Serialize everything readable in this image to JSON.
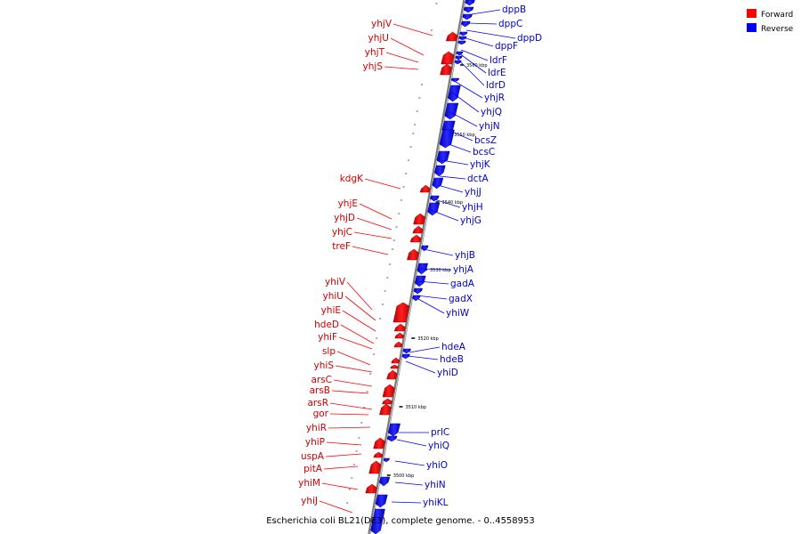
{
  "caption": "Escherichia coli BL21(DE3), complete genome. - 0..4558953",
  "legend": {
    "forward": {
      "label": "Forward",
      "color": "#ff0000"
    },
    "reverse": {
      "label": "Reverse",
      "color": "#0000ff"
    }
  },
  "ticks": [
    "3560 kbp",
    "3550 kbp",
    "3540 kbp",
    "3530 kbp",
    "3520 kbp",
    "3510 kbp",
    "3500 kbp"
  ],
  "forward_genes": [
    "yhjV",
    "yhjU",
    "yhjT",
    "yhjS",
    "kdgK",
    "yhjE",
    "yhjD",
    "yhjC",
    "treF",
    "yhiV",
    "yhiU",
    "yhiE",
    "hdeD",
    "yhiF",
    "slp",
    "yhiS",
    "arsC",
    "arsB",
    "arsR",
    "gor",
    "yhiR",
    "yhiP",
    "uspA",
    "pitA",
    "yhiM",
    "yhiJ"
  ],
  "reverse_genes": [
    "dppB",
    "dppC",
    "dppD",
    "dppF",
    "ldrF",
    "ldrE",
    "ldrD",
    "yhjR",
    "yhjQ",
    "yhjN",
    "bcsZ",
    "bcsC",
    "yhjK",
    "dctA",
    "yhjJ",
    "yhjH",
    "yhjG",
    "yhjB",
    "yhjA",
    "gadA",
    "gadX",
    "yhiW",
    "hdeA",
    "hdeB",
    "yhiD",
    "prlC",
    "yhiQ",
    "yhiO",
    "yhiN",
    "yhiKL"
  ]
}
